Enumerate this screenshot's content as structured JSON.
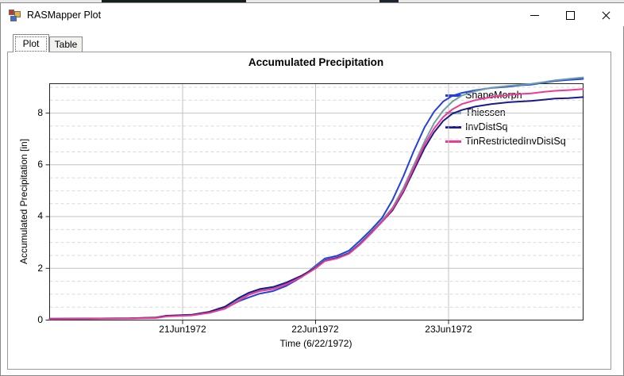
{
  "window": {
    "title": "RASMapper Plot",
    "controls": [
      {
        "name": "minimize"
      },
      {
        "name": "maximize"
      },
      {
        "name": "close"
      }
    ]
  },
  "tabs": [
    {
      "label": "Plot",
      "selected": true
    },
    {
      "label": "Table",
      "selected": false
    }
  ],
  "chart_data": {
    "type": "line",
    "title": "Accumulated Precipitation",
    "xlabel": "Time (6/22/1972)",
    "ylabel": "Accumulated Precipitation [in]",
    "x_unit_note": "t = days since 20Jun1972 00:00 (visible axis span)",
    "xlim": [
      0,
      4.012
    ],
    "ylim": [
      0,
      9.137
    ],
    "grid": "major solid, minor dashed (y every 0.5)",
    "legend_position": "top-right inside plot",
    "x_ticks": [
      {
        "t": 1,
        "label": "21Jun1972"
      },
      {
        "t": 2,
        "label": "22Jun1972"
      },
      {
        "t": 3,
        "label": "23Jun1972"
      }
    ],
    "y_ticks": [
      0,
      2,
      4,
      6,
      8
    ],
    "y_tick_labels": [
      "0",
      "2",
      "4",
      "6",
      "8"
    ],
    "y_minor_step": 0.5,
    "series": [
      {
        "name": "ShapeMorph",
        "color": "#2340dd",
        "points": [
          [
            0,
            0.05
          ],
          [
            0.6,
            0.07
          ],
          [
            0.8,
            0.09
          ],
          [
            0.88,
            0.15
          ],
          [
            1.07,
            0.19
          ],
          [
            1.2,
            0.28
          ],
          [
            1.32,
            0.45
          ],
          [
            1.42,
            0.72
          ],
          [
            1.5,
            0.88
          ],
          [
            1.58,
            1.02
          ],
          [
            1.68,
            1.12
          ],
          [
            1.78,
            1.32
          ],
          [
            1.9,
            1.68
          ],
          [
            2.0,
            2.1
          ],
          [
            2.07,
            2.38
          ],
          [
            2.16,
            2.48
          ],
          [
            2.25,
            2.68
          ],
          [
            2.33,
            3.05
          ],
          [
            2.42,
            3.5
          ],
          [
            2.5,
            3.95
          ],
          [
            2.58,
            4.65
          ],
          [
            2.66,
            5.55
          ],
          [
            2.74,
            6.55
          ],
          [
            2.82,
            7.45
          ],
          [
            2.89,
            8.05
          ],
          [
            2.96,
            8.45
          ],
          [
            3.03,
            8.67
          ],
          [
            3.1,
            8.78
          ],
          [
            3.2,
            8.88
          ],
          [
            3.32,
            8.97
          ],
          [
            3.45,
            9.02
          ],
          [
            3.55,
            9.08
          ],
          [
            3.62,
            9.1
          ],
          [
            3.72,
            9.18
          ],
          [
            3.8,
            9.24
          ],
          [
            3.9,
            9.28
          ],
          [
            4.012,
            9.32
          ]
        ]
      },
      {
        "name": "Thiessen",
        "color": "#6d9fa9",
        "points": [
          [
            0,
            0.05
          ],
          [
            0.6,
            0.07
          ],
          [
            0.8,
            0.09
          ],
          [
            0.88,
            0.16
          ],
          [
            1.07,
            0.2
          ],
          [
            1.2,
            0.3
          ],
          [
            1.32,
            0.48
          ],
          [
            1.42,
            0.8
          ],
          [
            1.5,
            1.02
          ],
          [
            1.58,
            1.16
          ],
          [
            1.68,
            1.24
          ],
          [
            1.78,
            1.42
          ],
          [
            1.9,
            1.72
          ],
          [
            2.0,
            2.05
          ],
          [
            2.07,
            2.32
          ],
          [
            2.16,
            2.42
          ],
          [
            2.25,
            2.6
          ],
          [
            2.33,
            2.95
          ],
          [
            2.42,
            3.42
          ],
          [
            2.5,
            3.85
          ],
          [
            2.58,
            4.35
          ],
          [
            2.66,
            5.1
          ],
          [
            2.74,
            6.0
          ],
          [
            2.82,
            6.9
          ],
          [
            2.89,
            7.6
          ],
          [
            2.96,
            8.1
          ],
          [
            3.03,
            8.45
          ],
          [
            3.1,
            8.68
          ],
          [
            3.2,
            8.85
          ],
          [
            3.32,
            8.98
          ],
          [
            3.45,
            9.05
          ],
          [
            3.55,
            9.1
          ],
          [
            3.62,
            9.13
          ],
          [
            3.72,
            9.2
          ],
          [
            3.8,
            9.27
          ],
          [
            3.9,
            9.32
          ],
          [
            4.012,
            9.38
          ]
        ]
      },
      {
        "name": "InvDistSq",
        "color": "#1a1a8e",
        "points": [
          [
            0,
            0.05
          ],
          [
            0.6,
            0.07
          ],
          [
            0.8,
            0.1
          ],
          [
            0.88,
            0.17
          ],
          [
            1.07,
            0.21
          ],
          [
            1.2,
            0.32
          ],
          [
            1.32,
            0.52
          ],
          [
            1.42,
            0.85
          ],
          [
            1.5,
            1.06
          ],
          [
            1.58,
            1.2
          ],
          [
            1.68,
            1.28
          ],
          [
            1.78,
            1.45
          ],
          [
            1.9,
            1.73
          ],
          [
            2.0,
            2.02
          ],
          [
            2.07,
            2.3
          ],
          [
            2.16,
            2.4
          ],
          [
            2.25,
            2.58
          ],
          [
            2.33,
            2.92
          ],
          [
            2.42,
            3.38
          ],
          [
            2.5,
            3.8
          ],
          [
            2.58,
            4.25
          ],
          [
            2.66,
            4.95
          ],
          [
            2.74,
            5.8
          ],
          [
            2.82,
            6.65
          ],
          [
            2.89,
            7.25
          ],
          [
            2.96,
            7.7
          ],
          [
            3.03,
            7.98
          ],
          [
            3.1,
            8.12
          ],
          [
            3.2,
            8.25
          ],
          [
            3.32,
            8.35
          ],
          [
            3.45,
            8.42
          ],
          [
            3.55,
            8.45
          ],
          [
            3.62,
            8.47
          ],
          [
            3.72,
            8.52
          ],
          [
            3.8,
            8.56
          ],
          [
            3.9,
            8.58
          ],
          [
            4.012,
            8.62
          ]
        ]
      },
      {
        "name": "TinRestrictedInvDistSq",
        "color": "#ef3a92",
        "points": [
          [
            0,
            0.04
          ],
          [
            0.6,
            0.06
          ],
          [
            0.8,
            0.08
          ],
          [
            0.88,
            0.14
          ],
          [
            1.07,
            0.18
          ],
          [
            1.2,
            0.28
          ],
          [
            1.32,
            0.44
          ],
          [
            1.42,
            0.74
          ],
          [
            1.5,
            0.98
          ],
          [
            1.58,
            1.12
          ],
          [
            1.68,
            1.2
          ],
          [
            1.78,
            1.38
          ],
          [
            1.9,
            1.68
          ],
          [
            2.0,
            2.0
          ],
          [
            2.07,
            2.28
          ],
          [
            2.16,
            2.38
          ],
          [
            2.25,
            2.56
          ],
          [
            2.33,
            2.9
          ],
          [
            2.42,
            3.36
          ],
          [
            2.5,
            3.8
          ],
          [
            2.58,
            4.3
          ],
          [
            2.66,
            5.0
          ],
          [
            2.74,
            5.9
          ],
          [
            2.82,
            6.78
          ],
          [
            2.89,
            7.4
          ],
          [
            2.96,
            7.85
          ],
          [
            3.03,
            8.15
          ],
          [
            3.1,
            8.35
          ],
          [
            3.2,
            8.5
          ],
          [
            3.32,
            8.62
          ],
          [
            3.45,
            8.7
          ],
          [
            3.55,
            8.74
          ],
          [
            3.62,
            8.76
          ],
          [
            3.72,
            8.82
          ],
          [
            3.8,
            8.86
          ],
          [
            3.9,
            8.89
          ],
          [
            4.012,
            8.93
          ]
        ]
      }
    ]
  },
  "colors": {
    "plot_border": "#262626",
    "grid_major": "#c2c2c2",
    "grid_minor": "#d9d9d9",
    "window_border": "#898989"
  }
}
